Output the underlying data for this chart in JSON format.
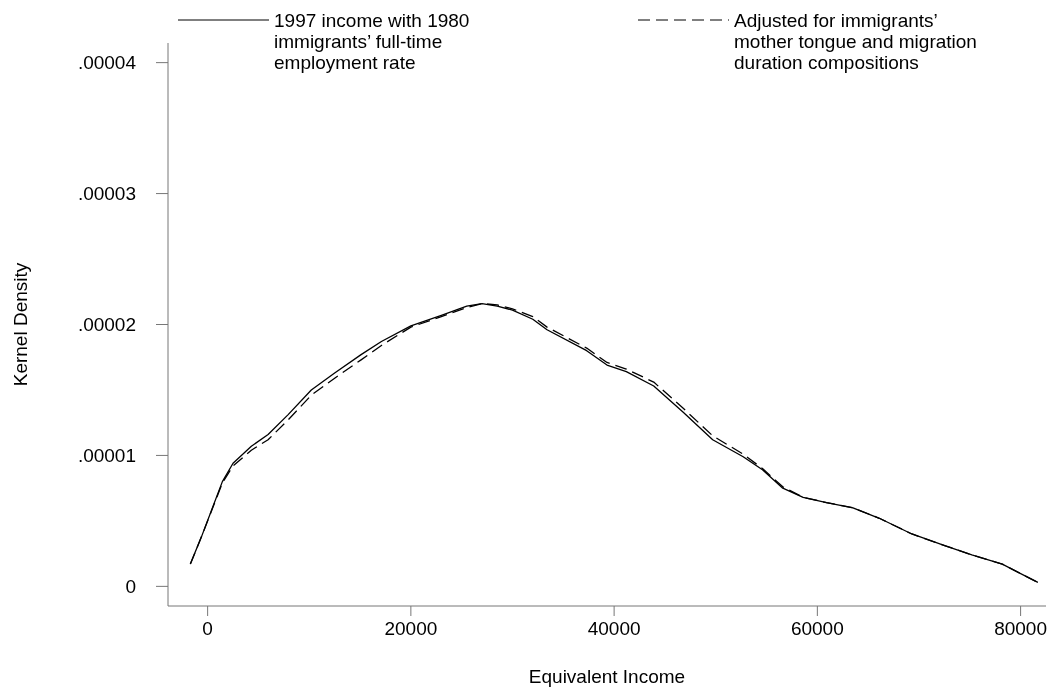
{
  "chart_data": {
    "type": "line",
    "xlabel": "Equivalent Income",
    "ylabel": "Kernel Density",
    "xlim": [
      -3900,
      82500
    ],
    "xticks": [
      0,
      20000,
      40000,
      60000,
      80000
    ],
    "ylim": [
      -1.5e-06,
      4.15e-05
    ],
    "yticks": [
      0,
      {
        "value": 1e-05,
        "label": ".00001"
      },
      {
        "value": 2e-05,
        "label": ".00002"
      },
      {
        "value": 3e-05,
        "label": ".00003"
      },
      {
        "value": 4e-05,
        "label": ".00004"
      }
    ],
    "grid": false,
    "legend": "top",
    "marker": "none",
    "series": [
      {
        "name": "1997 income with 1980 immigrants’ full-time employment rate",
        "color": "#000000",
        "line_style": "solid",
        "x": [
          -1700,
          -600,
          1450,
          2500,
          4300,
          5950,
          7900,
          10200,
          12500,
          15100,
          17100,
          20000,
          23000,
          25500,
          27000,
          28500,
          30000,
          32000,
          33400,
          37300,
          39300,
          41200,
          43900,
          46800,
          49700,
          52700,
          54600,
          56600,
          58600,
          60900,
          63500,
          66100,
          69300,
          72600,
          75200,
          78200,
          81700
        ],
        "values": [
          1.7e-06,
          3.8e-06,
          8e-06,
          9.4e-06,
          1.07e-05,
          1.16e-05,
          1.31e-05,
          1.5e-05,
          1.63e-05,
          1.77e-05,
          1.87e-05,
          1.99e-05,
          2.07e-05,
          2.14e-05,
          2.16e-05,
          2.14e-05,
          2.11e-05,
          2.04e-05,
          1.96e-05,
          1.8e-05,
          1.69e-05,
          1.64e-05,
          1.53e-05,
          1.33e-05,
          1.12e-05,
          9.9e-06,
          8.9e-06,
          7.5e-06,
          6.8e-06,
          6.4e-06,
          6e-06,
          5.2e-06,
          4e-06,
          3.1e-06,
          2.4e-06,
          1.7e-06,
          3e-07
        ]
      },
      {
        "name": "Adjusted for immigrants’ mother tongue and migration duration compositions",
        "color": "#000000",
        "line_style": "dashed",
        "x": [
          -1700,
          -600,
          1450,
          2500,
          4300,
          5950,
          7900,
          10200,
          12500,
          15100,
          17100,
          20000,
          23000,
          25500,
          27000,
          28500,
          30000,
          32000,
          33400,
          37300,
          39300,
          41200,
          43900,
          46800,
          49700,
          52700,
          54600,
          56600,
          58600,
          60900,
          63500,
          66100,
          69300,
          72600,
          75200,
          78200,
          81700
        ],
        "values": [
          1.7e-06,
          3.8e-06,
          7.9e-06,
          9.2e-06,
          1.04e-05,
          1.12e-05,
          1.27e-05,
          1.46e-05,
          1.59e-05,
          1.73e-05,
          1.84e-05,
          1.98e-05,
          2.06e-05,
          2.13e-05,
          2.16e-05,
          2.15e-05,
          2.12e-05,
          2.06e-05,
          1.98e-05,
          1.82e-05,
          1.71e-05,
          1.66e-05,
          1.56e-05,
          1.36e-05,
          1.15e-05,
          1.01e-05,
          9e-06,
          7.6e-06,
          6.8e-06,
          6.4e-06,
          6e-06,
          5.2e-06,
          4e-06,
          3.1e-06,
          2.4e-06,
          1.7e-06,
          3e-07
        ]
      }
    ]
  }
}
